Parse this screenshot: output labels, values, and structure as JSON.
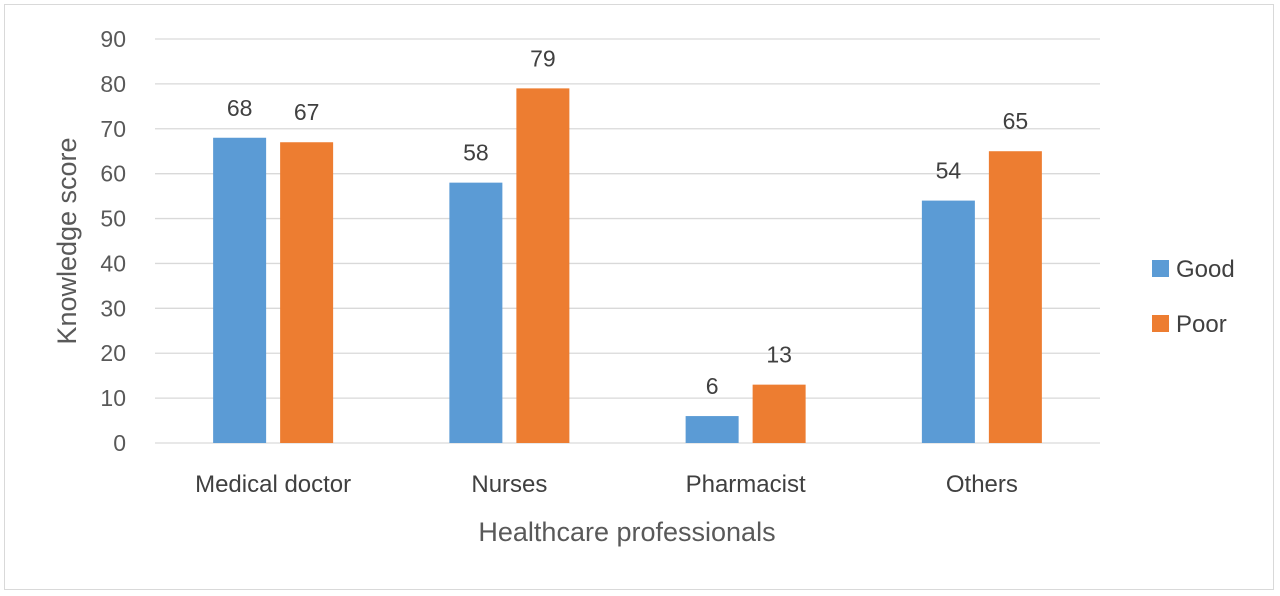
{
  "chart_data": {
    "type": "bar",
    "title": "",
    "xlabel": "Healthcare professionals",
    "ylabel": "Knowledge score",
    "categories": [
      "Medical doctor",
      "Nurses",
      "Pharmacist",
      "Others"
    ],
    "series": [
      {
        "name": "Good",
        "color": "#5b9bd5",
        "values": [
          68,
          58,
          6,
          54
        ]
      },
      {
        "name": "Poor",
        "color": "#ed7d31",
        "values": [
          67,
          79,
          13,
          65
        ]
      }
    ],
    "ylim": [
      0,
      90
    ],
    "yticks": [
      0,
      10,
      20,
      30,
      40,
      50,
      60,
      70,
      80,
      90
    ],
    "grid": true,
    "legend": "right",
    "data_labels": true
  }
}
